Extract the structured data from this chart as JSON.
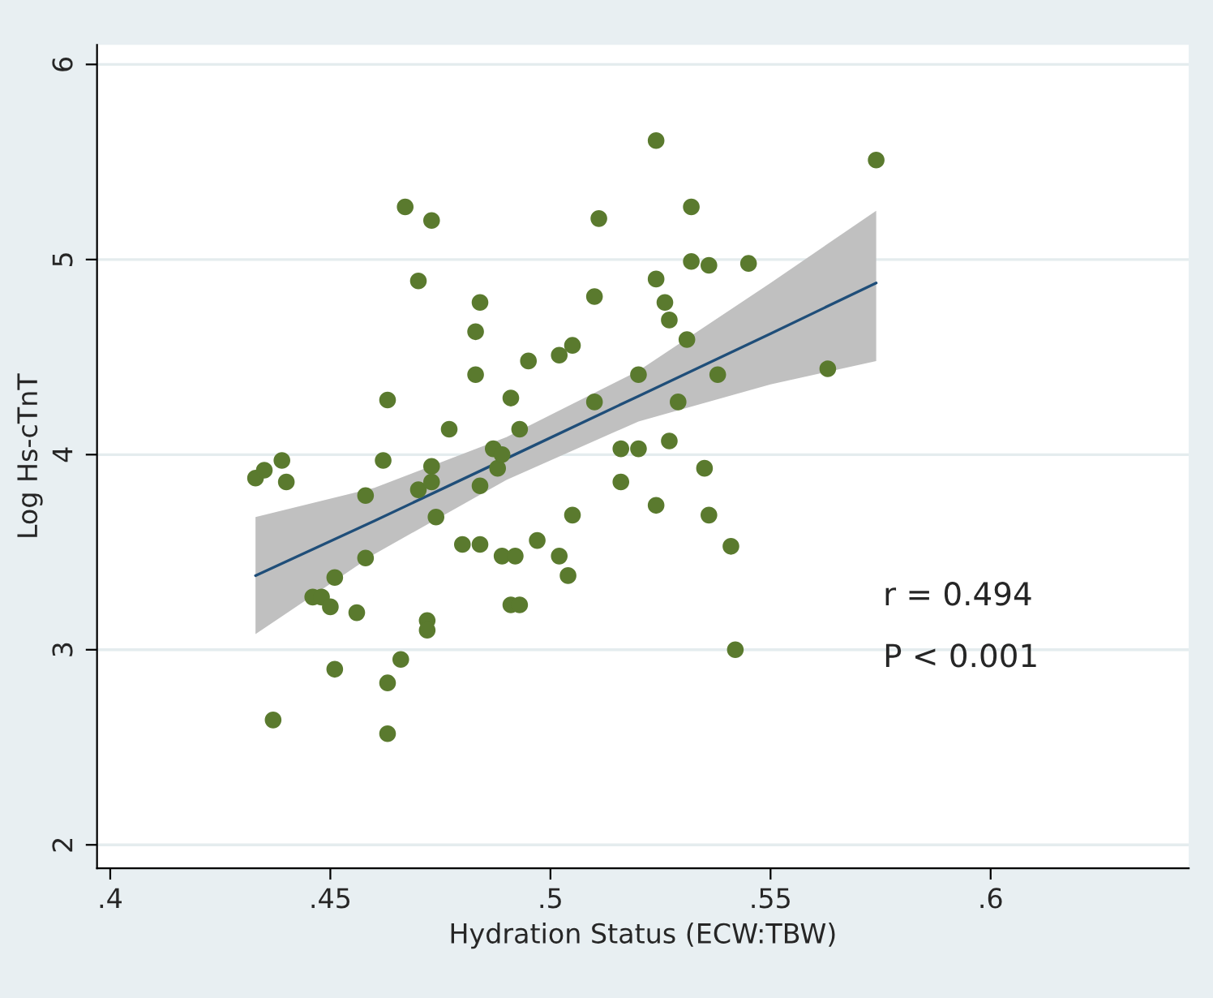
{
  "chart_data": {
    "type": "scatter",
    "xlabel": "Hydration Status (ECW:TBW)",
    "ylabel": "Log Hs-cTnT",
    "xlim": [
      0.397,
      0.645
    ],
    "ylim": [
      1.88,
      6.1
    ],
    "xticks": [
      {
        "value": 0.4,
        "label": ".4"
      },
      {
        "value": 0.45,
        "label": ".45"
      },
      {
        "value": 0.5,
        "label": ".5"
      },
      {
        "value": 0.55,
        "label": ".55"
      },
      {
        "value": 0.6,
        "label": ".6"
      }
    ],
    "yticks": [
      2,
      3,
      4,
      5,
      6
    ],
    "grid": "y",
    "annotations": [
      "r = 0.494",
      "P < 0.001"
    ],
    "series": [
      {
        "type": "line",
        "color": "#1f4e79",
        "x": [
          0.433,
          0.46,
          0.49,
          0.52,
          0.55,
          0.574
        ],
        "values": [
          3.38,
          3.66,
          3.98,
          4.3,
          4.62,
          4.88
        ],
        "lower": [
          3.08,
          3.49,
          3.87,
          4.17,
          4.36,
          4.48
        ],
        "upper": [
          3.68,
          3.83,
          4.09,
          4.43,
          4.88,
          5.25
        ],
        "marker": "none"
      },
      {
        "color": "#5a7a2e",
        "marker": "circle",
        "x": [
          0.433,
          0.435,
          0.439,
          0.44,
          0.437,
          0.446,
          0.448,
          0.45,
          0.451,
          0.451,
          0.456,
          0.458,
          0.458,
          0.462,
          0.463,
          0.463,
          0.463,
          0.466,
          0.467,
          0.47,
          0.47,
          0.472,
          0.472,
          0.473,
          0.473,
          0.473,
          0.474,
          0.477,
          0.48,
          0.483,
          0.483,
          0.484,
          0.484,
          0.484,
          0.487,
          0.488,
          0.489,
          0.489,
          0.491,
          0.491,
          0.492,
          0.493,
          0.493,
          0.495,
          0.497,
          0.502,
          0.502,
          0.504,
          0.505,
          0.505,
          0.51,
          0.51,
          0.511,
          0.524,
          0.574,
          0.532,
          0.532,
          0.536,
          0.545,
          0.524,
          0.526,
          0.527,
          0.531,
          0.52,
          0.538,
          0.563,
          0.529,
          0.516,
          0.52,
          0.527,
          0.516,
          0.535,
          0.524,
          0.536,
          0.541,
          0.542
        ],
        "values": [
          3.88,
          3.92,
          3.97,
          3.86,
          2.64,
          3.27,
          3.27,
          3.22,
          3.37,
          2.9,
          3.19,
          3.47,
          3.79,
          3.97,
          4.28,
          2.83,
          2.57,
          2.95,
          5.27,
          4.89,
          3.82,
          3.15,
          3.1,
          5.2,
          3.94,
          3.86,
          3.68,
          4.13,
          3.54,
          4.63,
          4.41,
          4.78,
          3.84,
          3.54,
          4.03,
          3.93,
          4.0,
          3.48,
          4.29,
          3.23,
          3.48,
          3.23,
          4.13,
          4.48,
          3.56,
          3.48,
          4.51,
          3.38,
          4.56,
          3.69,
          4.81,
          4.27,
          5.21,
          5.61,
          5.51,
          5.27,
          4.99,
          4.97,
          4.98,
          4.9,
          4.78,
          4.69,
          4.59,
          4.41,
          4.41,
          4.44,
          4.27,
          4.03,
          4.03,
          4.07,
          3.86,
          3.93,
          3.74,
          3.69,
          3.53,
          3.0
        ]
      }
    ]
  }
}
